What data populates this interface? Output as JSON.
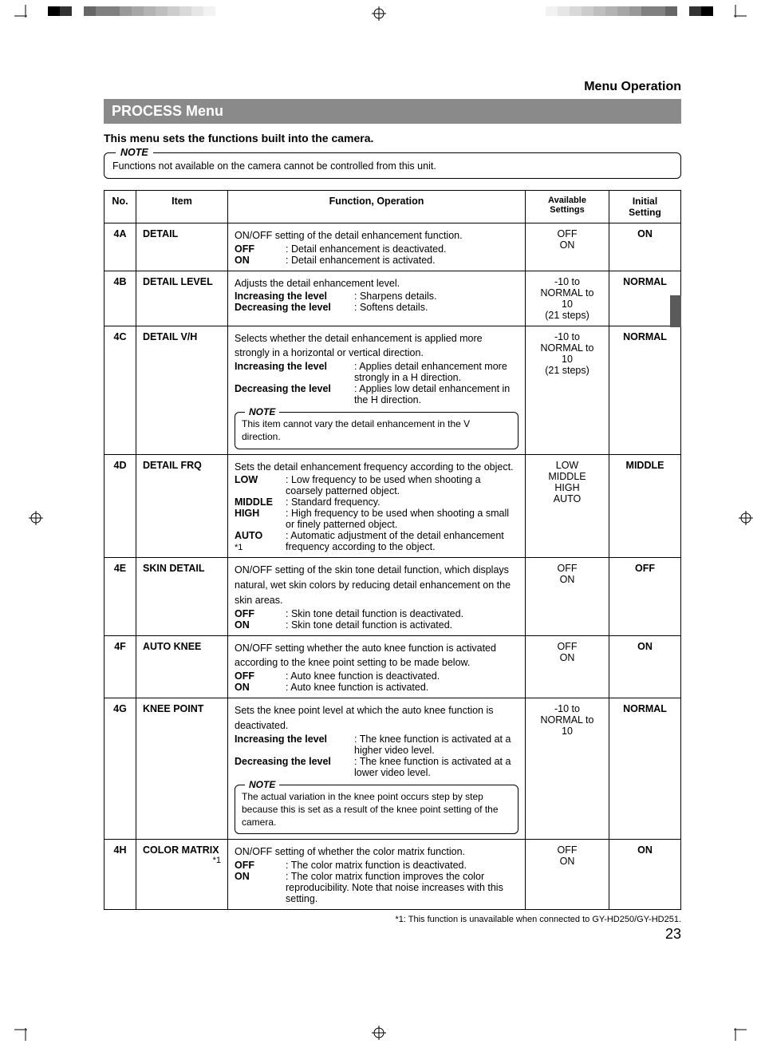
{
  "header": {
    "section_right": "Menu Operation",
    "title_bar": "PROCESS Menu",
    "subtitle": "This menu sets the functions built into the camera."
  },
  "top_note": {
    "label": "NOTE",
    "text": "Functions not available on the camera cannot be controlled from this unit."
  },
  "columns": {
    "no": "No.",
    "item": "Item",
    "func": "Function, Operation",
    "avail": "Available Settings",
    "init": "Initial Setting"
  },
  "rows": {
    "r4A": {
      "no": "4A",
      "item": "DETAIL",
      "func_intro": "ON/OFF setting of the detail enhancement function.",
      "off_label": "OFF",
      "off_text": ": Detail enhancement is deactivated.",
      "on_label": "ON",
      "on_text": ": Detail enhancement is activated.",
      "avail": "OFF\nON",
      "init": "ON"
    },
    "r4B": {
      "no": "4B",
      "item": "DETAIL LEVEL",
      "func_intro": "Adjusts the detail enhancement level.",
      "inc_label": "Increasing the level",
      "inc_text": ": Sharpens details.",
      "dec_label": "Decreasing the level",
      "dec_text": ": Softens details.",
      "avail": "-10 to\nNORMAL to\n10\n(21 steps)",
      "init": "NORMAL"
    },
    "r4C": {
      "no": "4C",
      "item": "DETAIL V/H",
      "func_intro": "Selects whether the detail enhancement is applied more strongly in a horizontal or vertical direction.",
      "inc_label": "Increasing the level",
      "inc_text": ": Applies detail enhancement more strongly in a H direction.",
      "dec_label": "Decreasing the level",
      "dec_text": ": Applies low detail enhancement in the H direction.",
      "note_label": "NOTE",
      "note_text": "This item cannot vary the detail enhancement in the V direction.",
      "avail": "-10 to\nNORMAL to\n10\n(21 steps)",
      "init": "NORMAL"
    },
    "r4D": {
      "no": "4D",
      "item": "DETAIL FRQ",
      "func_intro": "Sets the detail enhancement frequency according to the object.",
      "low_label": "LOW",
      "low_text": ": Low frequency to be used when shooting a coarsely patterned object.",
      "mid_label": "MIDDLE",
      "mid_text": ": Standard frequency.",
      "high_label": "HIGH",
      "high_text": ": High frequency to be used when shooting a small or finely patterned object.",
      "auto_label": "AUTO",
      "auto_sup": "*1",
      "auto_text": ": Automatic adjustment of the detail enhancement frequency according to the object.",
      "avail": "LOW\nMIDDLE\nHIGH\nAUTO",
      "init": "MIDDLE"
    },
    "r4E": {
      "no": "4E",
      "item": "SKIN DETAIL",
      "func_intro": "ON/OFF setting of the skin tone detail function, which displays natural, wet skin colors by reducing detail enhancement on the skin areas.",
      "off_label": "OFF",
      "off_text": ": Skin tone detail function is deactivated.",
      "on_label": "ON",
      "on_text": ": Skin tone detail function is activated.",
      "avail": "OFF\nON",
      "init": "OFF"
    },
    "r4F": {
      "no": "4F",
      "item": "AUTO KNEE",
      "func_intro": "ON/OFF setting whether the auto knee function is activated according to the knee point setting to be made below.",
      "off_label": "OFF",
      "off_text": ": Auto knee function is deactivated.",
      "on_label": "ON",
      "on_text": ": Auto knee function is activated.",
      "avail": "OFF\nON",
      "init": "ON"
    },
    "r4G": {
      "no": "4G",
      "item": "KNEE POINT",
      "func_intro": "Sets the knee point level at which the auto knee function is deactivated.",
      "inc_label": "Increasing the level",
      "inc_text": ": The knee function is activated at a higher video level.",
      "dec_label": "Decreasing the level",
      "dec_text": ": The knee function is activated at a lower video level.",
      "note_label": "NOTE",
      "note_text": "The actual variation in the knee point occurs step by step because this is set as a result of the knee point setting of the camera.",
      "avail": "-10 to\nNORMAL to\n10",
      "init": "NORMAL"
    },
    "r4H": {
      "no": "4H",
      "item": "COLOR MATRIX",
      "item_sup": "*1",
      "func_intro": "ON/OFF setting of whether the color matrix function.",
      "off_label": "OFF",
      "off_text": ": The color matrix function is deactivated.",
      "on_label": "ON",
      "on_text": ": The color matrix function improves the color reproducibility. Note that noise increases with this setting.",
      "avail": "OFF\nON",
      "init": "ON"
    }
  },
  "footnote": "*1: This function is unavailable when connected to GY-HD250/GY-HD251.",
  "page_number": "23",
  "print_marks": {
    "colorbar_left": [
      "#000000",
      "#333333",
      "#ffffff",
      "#666666",
      "#808080",
      "#808080",
      "#999999",
      "#a6a6a6",
      "#b3b3b3",
      "#bfbfbf",
      "#cccccc",
      "#d9d9d9",
      "#e6e6e6",
      "#f2f2f2"
    ],
    "colorbar_right": [
      "#f2f2f2",
      "#e6e6e6",
      "#d9d9d9",
      "#cccccc",
      "#bfbfbf",
      "#b3b3b3",
      "#a6a6a6",
      "#999999",
      "#808080",
      "#808080",
      "#666666",
      "#ffffff",
      "#333333",
      "#000000"
    ]
  }
}
